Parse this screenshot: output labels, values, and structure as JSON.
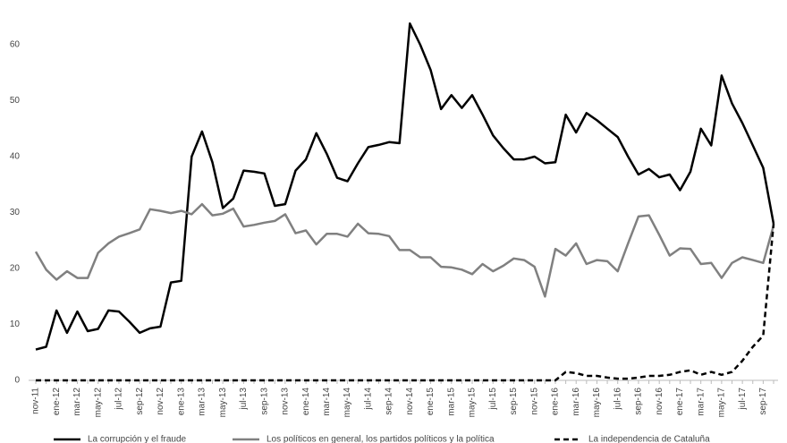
{
  "chart_data": {
    "type": "line",
    "categories": [
      "nov-11",
      null,
      "ene-12",
      null,
      "mar-12",
      null,
      "may-12",
      null,
      "jul-12",
      null,
      "sep-12",
      null,
      "nov-12",
      null,
      "ene-13",
      null,
      "mar-13",
      null,
      "may-13",
      null,
      "jul-13",
      null,
      "sep-13",
      null,
      "nov-13",
      null,
      "ene-14",
      null,
      "mar-14",
      null,
      "may-14",
      null,
      "jul-14",
      null,
      "sep-14",
      null,
      "nov-14",
      null,
      "ene-15",
      null,
      "mar-15",
      null,
      "may-15",
      null,
      "jul-15",
      null,
      "sep-15",
      null,
      "nov-15",
      null,
      "ene-16",
      null,
      "mar-16",
      null,
      "may-16",
      null,
      "jul-16",
      null,
      "sep-16",
      null,
      "nov-16",
      null,
      "ene-17",
      null,
      "mar-17",
      null,
      "may-17",
      null,
      "jul-17",
      null,
      "sep-17",
      null
    ],
    "series": [
      {
        "name": "La corrupción y el fraude",
        "color": "#000000",
        "style": "solid",
        "values": [
          5.5,
          6,
          12.5,
          8.5,
          12.3,
          8.8,
          9.2,
          12.5,
          12.3,
          10.5,
          8.5,
          9.3,
          9.6,
          17.5,
          17.8,
          40,
          44.5,
          39,
          30.8,
          32.5,
          37.5,
          37.3,
          37,
          31.2,
          31.5,
          37.5,
          39.5,
          44.2,
          40.5,
          36.2,
          35.6,
          38.8,
          41.7,
          42.1,
          42.6,
          42.4,
          63.8,
          60,
          55.5,
          48.5,
          51,
          48.7,
          51,
          47.5,
          43.8,
          41.5,
          39.5,
          39.5,
          40,
          38.8,
          39,
          47.5,
          44.3,
          47.8,
          46.5,
          45,
          43.5,
          40,
          36.8,
          37.8,
          36.3,
          36.8,
          34,
          37.3,
          45,
          42,
          54.5,
          49.5,
          46,
          42,
          38,
          28
        ]
      },
      {
        "name": "Los políticos en general, los partidos políticos y la política",
        "color": "#808080",
        "style": "solid",
        "values": [
          23,
          19.8,
          18,
          19.5,
          18.3,
          18.3,
          22.8,
          24.5,
          25.7,
          26.3,
          27,
          30.6,
          30.3,
          29.9,
          30.3,
          29.7,
          31.5,
          29.5,
          29.8,
          30.7,
          27.5,
          27.8,
          28.2,
          28.5,
          29.7,
          26.3,
          26.8,
          24.3,
          26.2,
          26.2,
          25.7,
          28,
          26.3,
          26.2,
          25.8,
          23.3,
          23.3,
          22,
          22,
          20.3,
          20.2,
          19.8,
          19,
          20.8,
          19.5,
          20.5,
          21.8,
          21.5,
          20.3,
          15,
          23.5,
          22.3,
          24.5,
          20.8,
          21.5,
          21.3,
          19.5,
          24.5,
          29.3,
          29.5,
          26,
          22.3,
          23.6,
          23.5,
          20.8,
          21,
          18.3,
          21,
          22,
          21.5,
          21,
          27.7
        ]
      },
      {
        "name": "La independencia de Cataluña",
        "color": "#000000",
        "style": "dashed",
        "values": [
          0,
          0,
          0,
          0,
          0,
          0,
          0,
          0,
          0,
          0,
          0,
          0,
          0,
          0,
          0,
          0,
          0,
          0,
          0,
          0,
          0,
          0,
          0,
          0,
          0,
          0,
          0,
          0,
          0,
          0,
          0,
          0,
          0,
          0,
          0,
          0,
          0,
          0,
          0,
          0,
          0,
          0,
          0,
          0,
          0,
          0,
          0,
          0,
          0,
          0,
          0,
          1.5,
          1.3,
          0.8,
          0.8,
          0.5,
          0.3,
          0.3,
          0.5,
          0.8,
          0.8,
          1,
          1.5,
          1.8,
          1,
          1.5,
          1,
          1.5,
          3.5,
          6,
          8,
          28
        ]
      }
    ],
    "ylim": [
      0,
      65
    ],
    "yticks": [
      0,
      10,
      20,
      30,
      40,
      50,
      60
    ],
    "grid": false
  }
}
